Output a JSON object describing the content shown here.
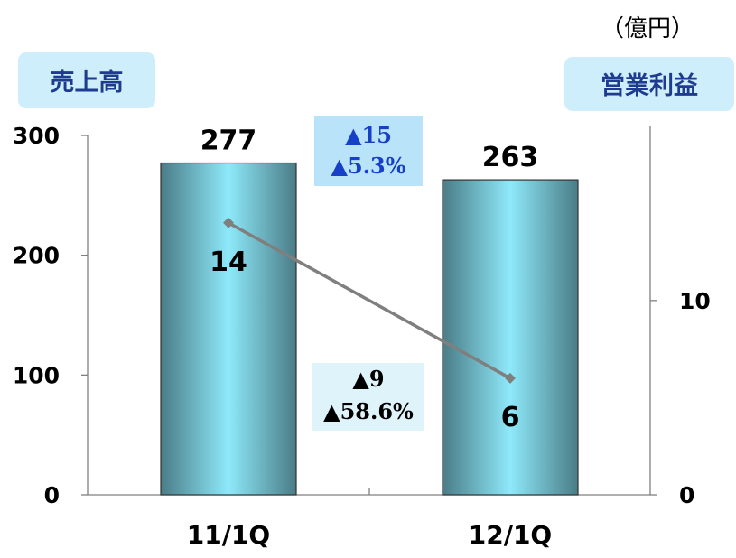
{
  "units_label": "（億円）",
  "left_axis_tag": "売上高",
  "right_axis_tag": "営業利益",
  "colors": {
    "bar_edge": "#4a7c86",
    "bar_center": "#8ee9fa",
    "line": "#7f7f7f",
    "tag_bg": "#cdeefa",
    "sales_change_bg": "#b9e3f8",
    "sales_change_text": "#1740c8",
    "profit_change_bg": "#dff3fb",
    "profit_change_text": "#000000"
  },
  "sales_change": {
    "amount": "▲15",
    "percent": "▲5.3%"
  },
  "profit_change": {
    "amount": "▲9",
    "percent": "▲58.6%"
  },
  "chart_data": {
    "type": "bar",
    "categories": [
      "11/1Q",
      "12/1Q"
    ],
    "series": [
      {
        "name": "売上高",
        "type": "bar",
        "axis": "left",
        "values": [
          277,
          263
        ],
        "labels": [
          "277",
          "263"
        ]
      },
      {
        "name": "営業利益",
        "type": "line",
        "axis": "right",
        "values": [
          14,
          6
        ],
        "labels": [
          "14",
          "6"
        ]
      }
    ],
    "y_left": {
      "min": 0,
      "max": 300,
      "ticks": [
        0,
        100,
        200,
        300
      ],
      "tick_labels": [
        "0",
        "100",
        "200",
        "300"
      ]
    },
    "y_right": {
      "min": 0,
      "max": 18.5,
      "ticks": [
        0,
        10
      ],
      "tick_labels": [
        "0",
        "10"
      ]
    },
    "grid": false
  }
}
